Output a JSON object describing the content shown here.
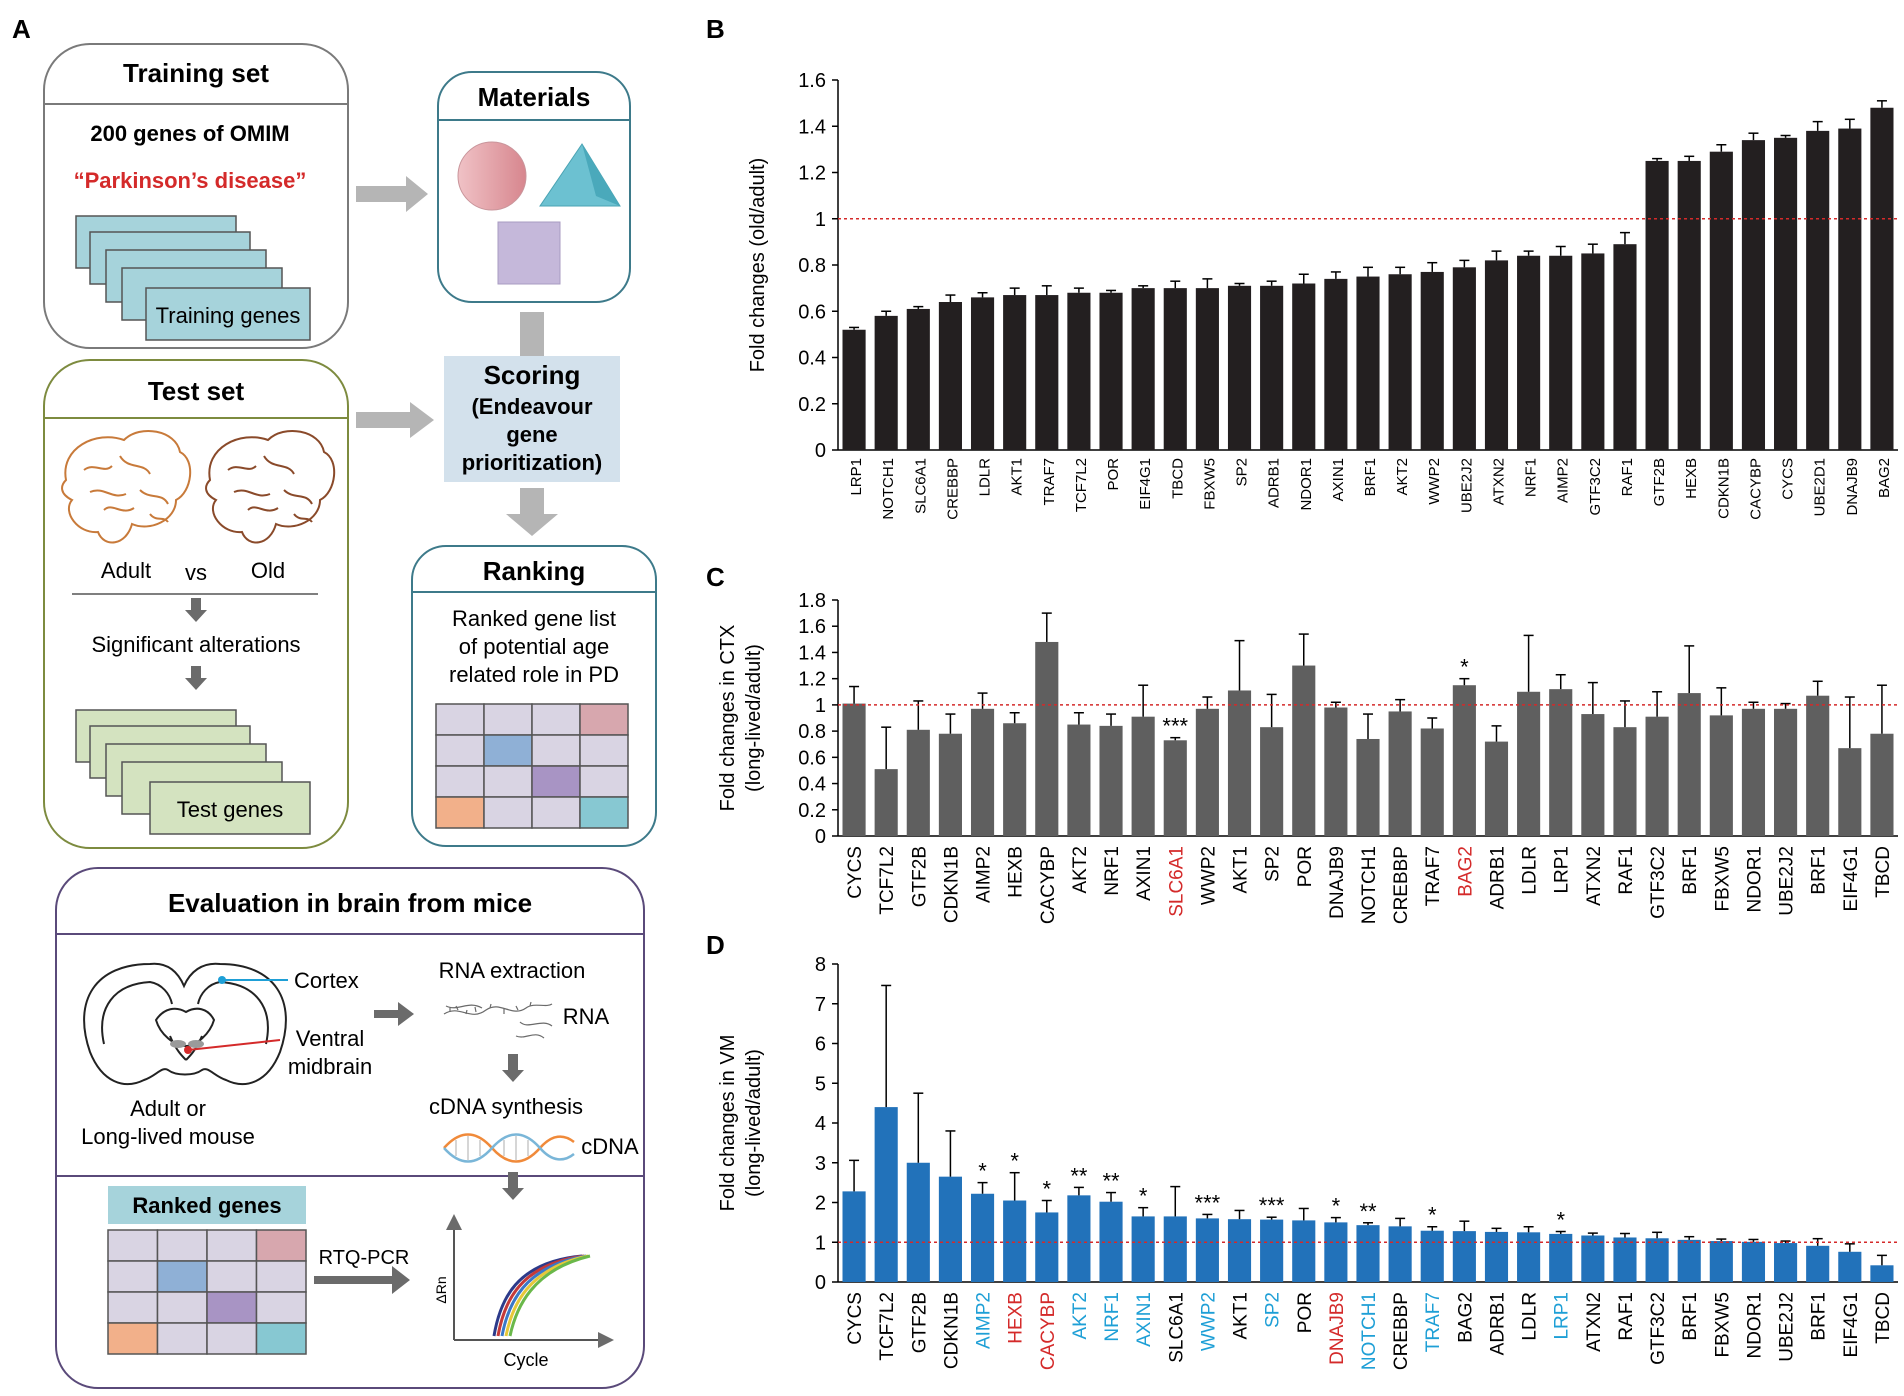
{
  "panel_letters": {
    "a": "A",
    "b": "B",
    "c": "C",
    "d": "D"
  },
  "training": {
    "title": "Training set",
    "line1": "200 genes of OMIM",
    "line2": "“Parkinson’s disease”",
    "cards_label": "Training genes"
  },
  "materials": {
    "title": "Materials"
  },
  "test": {
    "title": "Test set",
    "adult": "Adult",
    "vs": "vs",
    "old": "Old",
    "alterations": "Significant alterations",
    "cards_label": "Test genes"
  },
  "scoring": {
    "line1": "Scoring",
    "line2": "(Endeavour",
    "line3": "gene",
    "line4": "prioritization)"
  },
  "ranking": {
    "title": "Ranking",
    "line1": "Ranked gene list",
    "line2": "of potential age",
    "line3": "related role in PD"
  },
  "evaluation": {
    "title": "Evaluation in brain from mice",
    "cortex": "Cortex",
    "ventral1": "Ventral",
    "ventral2": "midbrain",
    "mouse1": "Adult or",
    "mouse2": "Long-lived mouse",
    "rna_extraction": "RNA extraction",
    "rna": "RNA",
    "cdna_synthesis": "cDNA synthesis",
    "cdna": "cDNA",
    "ranked_genes": "Ranked genes",
    "rtq": "RTQ-PCR",
    "cycle": "Cycle",
    "drn": "ΔRn"
  },
  "colors": {
    "red": "#d42a2a",
    "blue_label": "#1e9fd6",
    "bar_b": "#231f20",
    "bar_c": "#5f5f5f",
    "bar_d": "#2272ba",
    "ref_line": "#d42a2a",
    "teal_card": "#a6d3db",
    "green_card": "#d4e3c0",
    "grid_light": "#d9d4e3",
    "rank_pink": "#d7a7ae",
    "rank_blue": "#8fb0d6",
    "rank_purple": "#a894c4",
    "rank_orange": "#f2b08a",
    "rank_teal": "#87c8d2"
  },
  "chart_data": [
    {
      "type": "bar",
      "panel": "B",
      "ylabel": "Fold changes (old/adult)",
      "ylim": [
        0,
        1.6
      ],
      "yticks": [
        0,
        0.2,
        0.4,
        0.6,
        0.8,
        1,
        1.2,
        1.4,
        1.6
      ],
      "reference_line": 1,
      "categories": [
        "LRP1",
        "NOTCH1",
        "SLC6A1",
        "CREBBP",
        "LDLR",
        "AKT1",
        "TRAF7",
        "TCF7L2",
        "POR",
        "EIF4G1",
        "TBCD",
        "FBXW5",
        "SP2",
        "ADRB1",
        "NDOR1",
        "AXIN1",
        "BRF1",
        "AKT2",
        "WWP2",
        "UBE2J2",
        "ATXN2",
        "NRF1",
        "AIMP2",
        "GTF3C2",
        "RAF1",
        "GTF2B",
        "HEXB",
        "CDKN1B",
        "CACYBP",
        "CYCS",
        "UBE2D1",
        "DNAJB9",
        "BAG2"
      ],
      "values": [
        0.52,
        0.58,
        0.61,
        0.64,
        0.66,
        0.67,
        0.67,
        0.68,
        0.68,
        0.7,
        0.7,
        0.7,
        0.71,
        0.71,
        0.72,
        0.74,
        0.75,
        0.76,
        0.77,
        0.79,
        0.82,
        0.84,
        0.84,
        0.85,
        0.89,
        1.25,
        1.25,
        1.29,
        1.34,
        1.35,
        1.38,
        1.39,
        1.48
      ],
      "errors": [
        0.01,
        0.02,
        0.01,
        0.03,
        0.02,
        0.03,
        0.04,
        0.02,
        0.01,
        0.01,
        0.03,
        0.04,
        0.01,
        0.02,
        0.04,
        0.03,
        0.04,
        0.03,
        0.04,
        0.03,
        0.04,
        0.02,
        0.04,
        0.04,
        0.05,
        0.01,
        0.02,
        0.03,
        0.03,
        0.01,
        0.04,
        0.04,
        0.03
      ]
    },
    {
      "type": "bar",
      "panel": "C",
      "ylabel": "Fold changes in CTX",
      "ylabel2": "(long-lived/adult)",
      "ylim": [
        0,
        1.8
      ],
      "yticks": [
        0,
        0.2,
        0.4,
        0.6,
        0.8,
        1,
        1.2,
        1.4,
        1.6,
        1.8
      ],
      "reference_line": 1,
      "categories": [
        "CYCS",
        "TCF7L2",
        "GTF2B",
        "CDKN1B",
        "AIMP2",
        "HEXB",
        "CACYBP",
        "AKT2",
        "NRF1",
        "AXIN1",
        "SLC6A1",
        "WWP2",
        "AKT1",
        "SP2",
        "POR",
        "DNAJB9",
        "NOTCH1",
        "CREBBP",
        "TRAF7",
        "BAG2",
        "ADRB1",
        "LDLR",
        "LRP1",
        "ATXN2",
        "RAF1",
        "GTF3C2",
        "BRF1",
        "FBXW5",
        "NDOR1",
        "UBE2J2",
        "BRF1",
        "EIF4G1",
        "TBCD"
      ],
      "values": [
        1.01,
        0.51,
        0.81,
        0.78,
        0.97,
        0.86,
        1.48,
        0.85,
        0.84,
        0.91,
        0.73,
        0.97,
        1.11,
        0.83,
        1.3,
        0.98,
        0.74,
        0.95,
        0.82,
        1.15,
        0.72,
        1.1,
        1.12,
        0.93,
        0.83,
        0.91,
        1.09,
        0.92,
        0.97,
        0.97,
        1.07,
        0.67,
        0.78
      ],
      "errors": [
        0.13,
        0.32,
        0.22,
        0.15,
        0.12,
        0.08,
        0.22,
        0.09,
        0.09,
        0.24,
        0.02,
        0.09,
        0.38,
        0.25,
        0.24,
        0.04,
        0.19,
        0.09,
        0.08,
        0.05,
        0.12,
        0.43,
        0.11,
        0.24,
        0.2,
        0.19,
        0.36,
        0.21,
        0.05,
        0.04,
        0.11,
        0.39,
        0.37
      ],
      "significance": [
        "",
        "",
        "",
        "",
        "",
        "",
        "",
        "",
        "",
        "",
        "***",
        "",
        "",
        "",
        "",
        "",
        "",
        "",
        "",
        "*",
        "",
        "",
        "",
        "",
        "",
        "",
        "",
        "",
        "",
        "",
        "",
        "",
        ""
      ],
      "label_colors": [
        "",
        "",
        "",
        "",
        "",
        "",
        "",
        "",
        "",
        "",
        "red",
        "",
        "",
        "",
        "",
        "",
        "",
        "",
        "",
        "red",
        "",
        "",
        "",
        "",
        "",
        "",
        "",
        "",
        "",
        "",
        "",
        "",
        ""
      ]
    },
    {
      "type": "bar",
      "panel": "D",
      "ylabel": "Fold changes in VM",
      "ylabel2": "(long-lived/adult)",
      "ylim": [
        0,
        8
      ],
      "yticks": [
        0,
        1,
        2,
        3,
        4,
        5,
        6,
        7,
        8
      ],
      "reference_line": 1,
      "categories": [
        "CYCS",
        "TCF7L2",
        "GTF2B",
        "CDKN1B",
        "AIMP2",
        "HEXB",
        "CACYBP",
        "AKT2",
        "NRF1",
        "AXIN1",
        "SLC6A1",
        "WWP2",
        "AKT1",
        "SP2",
        "POR",
        "DNAJB9",
        "NOTCH1",
        "CREBBP",
        "TRAF7",
        "BAG2",
        "ADRB1",
        "LDLR",
        "LRP1",
        "ATXN2",
        "RAF1",
        "GTF3C2",
        "BRF1",
        "FBXW5",
        "NDOR1",
        "UBE2J2",
        "BRF1",
        "EIF4G1",
        "TBCD"
      ],
      "values": [
        2.28,
        4.4,
        3.0,
        2.65,
        2.22,
        2.05,
        1.75,
        2.18,
        2.02,
        1.65,
        1.65,
        1.6,
        1.58,
        1.57,
        1.55,
        1.5,
        1.43,
        1.4,
        1.29,
        1.28,
        1.26,
        1.25,
        1.21,
        1.17,
        1.12,
        1.1,
        1.06,
        1.03,
        1.01,
        0.98,
        0.91,
        0.76,
        0.42
      ],
      "errors": [
        0.78,
        3.06,
        1.75,
        1.15,
        0.28,
        0.7,
        0.3,
        0.2,
        0.23,
        0.22,
        0.75,
        0.1,
        0.22,
        0.06,
        0.3,
        0.12,
        0.06,
        0.2,
        0.1,
        0.25,
        0.09,
        0.14,
        0.06,
        0.06,
        0.1,
        0.15,
        0.08,
        0.05,
        0.06,
        0.05,
        0.18,
        0.2,
        0.25
      ],
      "significance": [
        "",
        "",
        "",
        "",
        "*",
        "*",
        "*",
        "**",
        "**",
        "*",
        "",
        "***",
        "",
        "***",
        "",
        "*",
        "**",
        "",
        "*",
        "",
        "",
        "",
        "*",
        "",
        "",
        "",
        "",
        "",
        "",
        "",
        "",
        "",
        ""
      ],
      "label_colors": [
        "",
        "",
        "",
        "",
        "blue",
        "red",
        "red",
        "blue",
        "blue",
        "blue",
        "",
        "blue",
        "",
        "blue",
        "",
        "red",
        "blue",
        "",
        "blue",
        "",
        "",
        "",
        "blue",
        "",
        "",
        "",
        "",
        "",
        "",
        "",
        "",
        "",
        ""
      ]
    }
  ]
}
